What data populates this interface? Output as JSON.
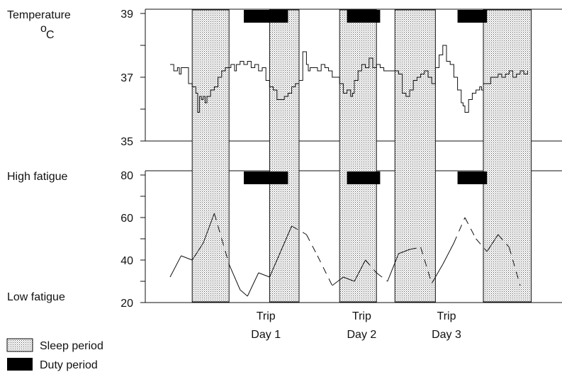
{
  "chart_data": [
    {
      "type": "line",
      "panel": "temperature",
      "ylabel_line1": "Temperature",
      "ylabel_unit_sup": "o",
      "ylabel_unit": "C",
      "yticks": [
        35,
        37,
        39
      ],
      "ylim": [
        35,
        39
      ],
      "x_range": [
        0,
        100
      ],
      "series": [
        {
          "x": [
            0,
            1,
            2,
            2.5,
            3,
            4,
            5,
            6,
            7,
            7.5,
            8,
            8.5,
            9,
            9.5,
            10,
            11,
            12,
            13,
            14,
            15,
            16,
            16.5,
            17,
            17.5,
            18,
            19,
            20,
            21,
            22,
            23,
            24,
            25,
            26,
            27,
            28,
            29,
            30,
            31,
            32,
            33,
            34,
            35,
            36,
            37,
            37.5,
            38,
            39,
            40,
            41,
            42,
            43,
            44,
            45,
            46,
            47,
            48,
            49,
            49.5,
            50,
            51,
            52,
            53,
            54,
            55,
            56,
            57,
            58,
            58.5,
            59,
            60,
            61,
            62,
            63,
            64,
            65,
            66,
            67,
            68,
            69,
            70,
            71,
            72,
            73,
            74,
            75,
            76,
            77,
            78,
            79,
            79.5,
            80,
            81,
            82,
            83,
            84,
            84.5,
            85,
            86,
            87,
            88,
            89,
            90,
            91,
            92,
            93,
            94,
            95,
            96,
            97
          ],
          "y": [
            37.4,
            37.2,
            37.3,
            37.1,
            37.3,
            37.3,
            36.8,
            36.7,
            36.5,
            35.9,
            36.4,
            36.3,
            36.4,
            36.2,
            36.4,
            36.6,
            36.7,
            37.0,
            37.2,
            37.3,
            37.3,
            37.4,
            37.4,
            37.2,
            37.4,
            37.5,
            37.4,
            37.5,
            37.3,
            37.4,
            37.2,
            37.3,
            36.9,
            36.7,
            36.6,
            36.3,
            36.3,
            36.4,
            36.5,
            36.7,
            36.8,
            36.9,
            37.8,
            37.4,
            37.2,
            37.3,
            37.3,
            37.2,
            37.4,
            37.3,
            37.2,
            37.0,
            37.0,
            36.8,
            36.5,
            36.6,
            36.4,
            36.5,
            36.9,
            37.2,
            37.4,
            37.3,
            37.6,
            37.3,
            37.4,
            37.3,
            37.2,
            37.2,
            37.2,
            37.2,
            37.2,
            37.1,
            36.5,
            36.4,
            36.6,
            36.9,
            37.0,
            37.1,
            37.2,
            37.0,
            36.8,
            37.3,
            37.7,
            38.0,
            37.5,
            37.4,
            37.0,
            36.6,
            36.2,
            36.1,
            35.9,
            36.3,
            36.5,
            36.6,
            36.7,
            36.6,
            36.8,
            36.8,
            37.0,
            37.0,
            37.1,
            37.0,
            37.1,
            37.2,
            37.0,
            37.1,
            37.2,
            37.1,
            37.2
          ]
        }
      ]
    },
    {
      "type": "line",
      "panel": "fatigue",
      "ylabel_top": "High fatigue",
      "ylabel_bottom": "Low fatigue",
      "yticks": [
        20,
        40,
        60,
        80
      ],
      "ylim": [
        20,
        80
      ],
      "x_range": [
        0,
        100
      ],
      "series": [
        {
          "x": [
            0,
            3,
            6,
            9,
            12,
            14,
            16,
            19,
            21,
            24,
            27,
            30,
            33,
            37,
            40,
            44,
            47,
            50,
            53,
            56,
            59,
            62,
            65,
            68,
            71,
            74,
            77,
            80,
            83,
            86,
            89,
            92,
            95
          ],
          "y": [
            32,
            42,
            40,
            48,
            62,
            50,
            38,
            26,
            23,
            34,
            32,
            44,
            56,
            52,
            42,
            28,
            32,
            30,
            40,
            34,
            30,
            43,
            45,
            46,
            29,
            38,
            48,
            60,
            50,
            44,
            52,
            46,
            28
          ],
          "dashed_segments": [
            [
              4,
              6
            ],
            [
              12,
              15
            ],
            [
              18,
              20
            ],
            [
              22,
              24
            ],
            [
              26,
              27
            ],
            [
              27,
              28
            ],
            [
              28,
              29
            ],
            [
              30,
              32
            ]
          ]
        }
      ]
    }
  ],
  "sleep_periods": [
    [
      6,
      16
    ],
    [
      27,
      35
    ],
    [
      46,
      56
    ],
    [
      61,
      72
    ],
    [
      85,
      98
    ]
  ],
  "duty_periods": [
    [
      20,
      32
    ],
    [
      48,
      57
    ],
    [
      78,
      86
    ]
  ],
  "trip_days": [
    {
      "line1": "Trip",
      "line2": "Day 1",
      "x": 26
    },
    {
      "line1": "Trip",
      "line2": "Day 2",
      "x": 52
    },
    {
      "line1": "Trip",
      "line2": "Day 3",
      "x": 75
    }
  ],
  "legend": {
    "sleep_label": "Sleep period",
    "duty_label": "Duty period"
  }
}
